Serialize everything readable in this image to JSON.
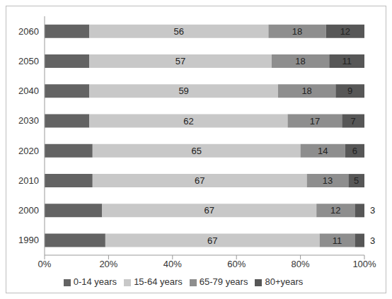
{
  "chart_data": {
    "type": "bar",
    "orientation": "horizontal",
    "stacked": true,
    "grid": false,
    "legend": "bottom",
    "categories": [
      "1990",
      "2000",
      "2010",
      "2020",
      "2030",
      "2040",
      "2050",
      "2060"
    ],
    "series": [
      {
        "name": "0-14 years",
        "color": "#636363",
        "data_labels": false,
        "values": [
          19,
          18,
          15,
          15,
          14,
          14,
          14,
          14
        ]
      },
      {
        "name": "15-64 years",
        "color": "#c8c8c8",
        "data_labels": true,
        "values": [
          67,
          67,
          67,
          65,
          62,
          59,
          57,
          56
        ]
      },
      {
        "name": "65-79 years",
        "color": "#8e8e8e",
        "data_labels": true,
        "values": [
          11,
          12,
          13,
          14,
          17,
          18,
          18,
          18
        ]
      },
      {
        "name": "80+years",
        "color": "#575757",
        "data_labels": true,
        "values": [
          3,
          3,
          5,
          6,
          7,
          9,
          11,
          12
        ]
      }
    ],
    "xlim": [
      0,
      100
    ],
    "xticks": [
      {
        "value": 0,
        "label": "0%"
      },
      {
        "value": 20,
        "label": "20%"
      },
      {
        "value": 40,
        "label": "40%"
      },
      {
        "value": 60,
        "label": "60%"
      },
      {
        "value": 80,
        "label": "80%"
      },
      {
        "value": 100,
        "label": "100%"
      }
    ]
  }
}
